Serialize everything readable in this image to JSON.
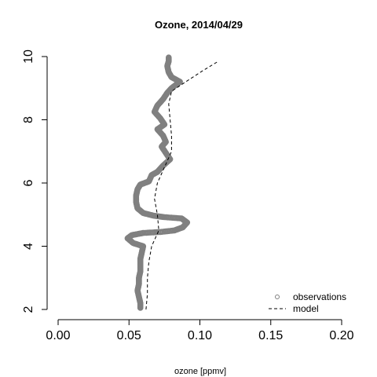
{
  "chart_data": {
    "type": "line",
    "title": "Ozone, 2014/04/29",
    "xlabel": "ozone [ppmv]",
    "ylabel": "",
    "xlim": [
      0.0,
      0.2
    ],
    "ylim": [
      2,
      10
    ],
    "x_ticks": [
      "0.00",
      "0.05",
      "0.10",
      "0.15",
      "0.20"
    ],
    "x_tick_values": [
      0.0,
      0.05,
      0.1,
      0.15,
      0.2
    ],
    "y_ticks": [
      "2",
      "4",
      "6",
      "8",
      "10"
    ],
    "y_tick_values": [
      2,
      4,
      6,
      8,
      10
    ],
    "grid": false,
    "legend_position": "bottom-right",
    "series": [
      {
        "name": "observations",
        "style": "circles",
        "color": "#808080",
        "points": [
          [
            0.058,
            2.05
          ],
          [
            0.058,
            2.2
          ],
          [
            0.057,
            2.4
          ],
          [
            0.056,
            2.6
          ],
          [
            0.057,
            2.8
          ],
          [
            0.057,
            3.0
          ],
          [
            0.058,
            3.2
          ],
          [
            0.058,
            3.4
          ],
          [
            0.058,
            3.6
          ],
          [
            0.059,
            3.8
          ],
          [
            0.06,
            4.0
          ],
          [
            0.053,
            4.1
          ],
          [
            0.049,
            4.25
          ],
          [
            0.052,
            4.35
          ],
          [
            0.06,
            4.42
          ],
          [
            0.072,
            4.45
          ],
          [
            0.082,
            4.5
          ],
          [
            0.088,
            4.6
          ],
          [
            0.091,
            4.75
          ],
          [
            0.087,
            4.88
          ],
          [
            0.075,
            4.92
          ],
          [
            0.067,
            4.97
          ],
          [
            0.06,
            5.05
          ],
          [
            0.056,
            5.2
          ],
          [
            0.055,
            5.4
          ],
          [
            0.055,
            5.6
          ],
          [
            0.056,
            5.8
          ],
          [
            0.058,
            5.95
          ],
          [
            0.064,
            6.05
          ],
          [
            0.066,
            6.25
          ],
          [
            0.07,
            6.35
          ],
          [
            0.074,
            6.55
          ],
          [
            0.079,
            6.75
          ],
          [
            0.076,
            6.95
          ],
          [
            0.073,
            7.15
          ],
          [
            0.076,
            7.3
          ],
          [
            0.074,
            7.5
          ],
          [
            0.07,
            7.7
          ],
          [
            0.075,
            7.85
          ],
          [
            0.072,
            8.05
          ],
          [
            0.068,
            8.25
          ],
          [
            0.07,
            8.45
          ],
          [
            0.074,
            8.65
          ],
          [
            0.077,
            8.85
          ],
          [
            0.08,
            9.0
          ],
          [
            0.086,
            9.2
          ],
          [
            0.08,
            9.35
          ],
          [
            0.078,
            9.5
          ],
          [
            0.077,
            9.7
          ],
          [
            0.078,
            9.85
          ],
          [
            0.078,
            9.97
          ]
        ]
      },
      {
        "name": "model",
        "style": "dashed",
        "color": "#000000",
        "points": [
          [
            0.062,
            2.0
          ],
          [
            0.063,
            2.5
          ],
          [
            0.063,
            3.0
          ],
          [
            0.064,
            3.5
          ],
          [
            0.066,
            4.0
          ],
          [
            0.071,
            4.5
          ],
          [
            0.07,
            5.0
          ],
          [
            0.068,
            5.5
          ],
          [
            0.07,
            6.0
          ],
          [
            0.075,
            6.5
          ],
          [
            0.08,
            7.0
          ],
          [
            0.08,
            7.5
          ],
          [
            0.079,
            8.0
          ],
          [
            0.078,
            8.5
          ],
          [
            0.08,
            8.9
          ],
          [
            0.09,
            9.2
          ],
          [
            0.102,
            9.55
          ],
          [
            0.113,
            9.85
          ]
        ]
      }
    ]
  }
}
